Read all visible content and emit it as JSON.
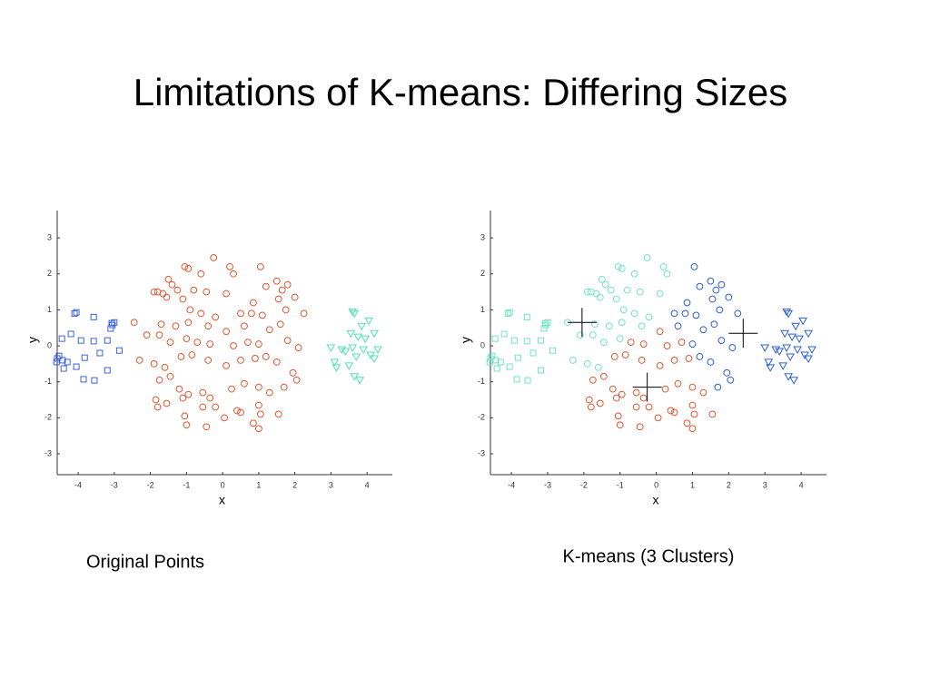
{
  "title": "Limitations of K-means: Differing Sizes",
  "chart_data": [
    {
      "type": "scatter",
      "caption": "Original Points",
      "xlabel": "x",
      "ylabel": "y",
      "xlim": [
        -4.58,
        4.7
      ],
      "ylim": [
        -3.58,
        3.76
      ],
      "xticks": [
        -4,
        -3,
        -2,
        -1,
        0,
        1,
        2,
        3,
        4
      ],
      "yticks": [
        -3,
        -2,
        -1,
        0,
        1,
        2,
        3
      ],
      "series": [
        {
          "marker": "square",
          "color": "#3b63d6",
          "x": [
            -4.05,
            -3.57,
            -3.07,
            -3.0,
            -3.1,
            -4.45,
            -4.2,
            -3.92,
            -3.57,
            -3.19,
            -2.86,
            -3.4,
            -4.53,
            -4.43,
            -4.3,
            -4.58,
            -3.82,
            -4.05,
            -4.4,
            -3.19,
            -3.85,
            -3.55,
            -4.6,
            -3.05,
            -4.1
          ],
          "values": [
            0.93,
            0.8,
            0.63,
            0.65,
            0.48,
            0.2,
            0.33,
            0.15,
            0.13,
            0.15,
            -0.13,
            -0.2,
            -0.28,
            -0.4,
            -0.45,
            -0.35,
            -0.33,
            -0.58,
            -0.63,
            -0.68,
            -0.93,
            -0.96,
            -0.45,
            0.58,
            0.9
          ]
        },
        {
          "marker": "circle",
          "color": "#e2562e",
          "x": [
            -0.25,
            0.2,
            1.05,
            -1.05,
            -0.95,
            -0.6,
            0.3,
            -1.5,
            -1.4,
            -1.8,
            -1.65,
            -1.9,
            -1.25,
            -0.8,
            -0.45,
            0.1,
            1.2,
            1.5,
            1.65,
            1.8,
            2.0,
            1.55,
            0.85,
            -1.1,
            -1.55,
            -0.9,
            -0.6,
            -0.2,
            0.5,
            0.8,
            1.1,
            1.75,
            2.25,
            -2.45,
            -1.7,
            -1.3,
            -0.95,
            -0.4,
            0.1,
            0.6,
            1.3,
            1.6,
            -2.1,
            -1.75,
            -1.45,
            -1.0,
            -0.7,
            -0.35,
            0.3,
            0.7,
            1.0,
            1.8,
            2.1,
            -2.3,
            -1.9,
            -1.6,
            -1.15,
            -0.85,
            -0.4,
            0.1,
            0.5,
            0.9,
            1.2,
            1.5,
            1.95,
            2.05,
            -1.75,
            -1.45,
            -1.2,
            -0.95,
            -0.55,
            -0.35,
            0.25,
            0.6,
            1.0,
            1.3,
            1.7,
            -1.85,
            -1.55,
            -1.1,
            -0.2,
            0.4,
            1.0,
            -1.8,
            -0.55,
            0.5,
            1.05,
            1.55,
            -1.0,
            -0.45,
            0.85,
            1.0,
            -1.05,
            0.05
          ],
          "values": [
            2.45,
            2.2,
            2.2,
            2.2,
            2.15,
            2.0,
            2.0,
            1.85,
            1.7,
            1.5,
            1.45,
            1.5,
            1.55,
            1.55,
            1.5,
            1.45,
            1.65,
            1.8,
            1.55,
            1.7,
            1.35,
            1.3,
            1.2,
            1.3,
            1.35,
            1.0,
            0.9,
            0.8,
            0.9,
            0.9,
            0.85,
            1.0,
            0.9,
            0.65,
            0.6,
            0.55,
            0.65,
            0.55,
            0.4,
            0.55,
            0.45,
            0.6,
            0.3,
            0.3,
            0.1,
            0.2,
            0.1,
            0.05,
            0.0,
            0.1,
            0.05,
            0.15,
            -0.05,
            -0.4,
            -0.5,
            -0.6,
            -0.3,
            -0.25,
            -0.4,
            -0.55,
            -0.4,
            -0.35,
            -0.3,
            -0.45,
            -0.75,
            -0.95,
            -0.95,
            -0.85,
            -1.2,
            -1.35,
            -1.3,
            -1.45,
            -1.2,
            -1.05,
            -1.15,
            -1.3,
            -1.15,
            -1.5,
            -1.6,
            -1.45,
            -1.7,
            -1.8,
            -1.65,
            -1.7,
            -1.7,
            -1.85,
            -1.9,
            -1.9,
            -2.2,
            -2.25,
            -2.15,
            -2.3,
            -1.95,
            -2.0
          ]
        },
        {
          "marker": "triangle",
          "color": "#4fe0b6",
          "x": [
            3.6,
            3.65,
            4.05,
            3.85,
            4.2,
            3.55,
            3.75,
            3.95,
            3.0,
            3.3,
            3.6,
            3.9,
            4.3,
            4.1,
            3.7,
            3.1,
            3.5,
            4.2,
            3.65,
            3.8,
            3.15,
            3.4
          ],
          "values": [
            0.95,
            0.9,
            0.7,
            0.55,
            0.35,
            0.35,
            0.25,
            0.2,
            -0.05,
            -0.1,
            -0.05,
            -0.1,
            -0.1,
            -0.25,
            -0.3,
            -0.45,
            -0.55,
            -0.35,
            -0.85,
            -0.95,
            -0.6,
            -0.15
          ]
        }
      ]
    },
    {
      "type": "scatter",
      "caption": "K-means (3 Clusters)",
      "xlabel": "x",
      "ylabel": "y",
      "xlim": [
        -4.58,
        4.7
      ],
      "ylim": [
        -3.58,
        3.76
      ],
      "xticks": [
        -4,
        -3,
        -2,
        -1,
        0,
        1,
        2,
        3,
        4
      ],
      "yticks": [
        -3,
        -2,
        -1,
        0,
        1,
        2,
        3
      ],
      "series": [
        {
          "marker": "square",
          "color": "#6fe3c6",
          "x": [
            -4.05,
            -3.57,
            -3.07,
            -3.0,
            -3.1,
            -4.45,
            -4.2,
            -3.92,
            -3.57,
            -3.19,
            -2.86,
            -3.4,
            -4.53,
            -4.43,
            -4.3,
            -4.58,
            -3.82,
            -4.05,
            -4.4,
            -3.19,
            -3.85,
            -3.55,
            -4.6,
            -3.05,
            -4.1
          ],
          "values": [
            0.93,
            0.8,
            0.63,
            0.65,
            0.48,
            0.2,
            0.33,
            0.15,
            0.13,
            0.15,
            -0.13,
            -0.2,
            -0.28,
            -0.4,
            -0.45,
            -0.35,
            -0.33,
            -0.58,
            -0.63,
            -0.68,
            -0.93,
            -0.96,
            -0.45,
            0.58,
            0.9
          ]
        },
        {
          "marker": "circle",
          "color": "#6fe3c6",
          "x": [
            -0.25,
            0.2,
            -1.05,
            -0.95,
            -0.6,
            0.3,
            -1.5,
            -1.4,
            -1.8,
            -1.65,
            -1.9,
            -1.25,
            -0.8,
            -0.45,
            0.1,
            -1.1,
            -1.55,
            -0.9,
            -0.6,
            -0.2,
            -2.45,
            -1.7,
            -1.3,
            -0.95,
            -0.4,
            -2.1,
            -1.75,
            -1.45,
            -1.0,
            -2.3,
            -1.9,
            -1.6
          ],
          "values": [
            2.45,
            2.2,
            2.2,
            2.15,
            2.0,
            2.0,
            1.85,
            1.7,
            1.5,
            1.45,
            1.5,
            1.55,
            1.55,
            1.5,
            1.45,
            1.3,
            1.35,
            1.0,
            0.9,
            0.8,
            0.65,
            0.6,
            0.55,
            0.65,
            0.55,
            0.3,
            0.3,
            0.1,
            0.2,
            -0.4,
            -0.5,
            -0.6
          ]
        },
        {
          "marker": "circle",
          "color": "#e2562e",
          "x": [
            0.1,
            -0.7,
            -0.35,
            0.3,
            0.7,
            -1.15,
            -0.85,
            -0.4,
            0.1,
            0.5,
            0.9,
            -1.75,
            -1.45,
            -1.2,
            -0.95,
            -0.55,
            -0.35,
            0.25,
            0.6,
            1.0,
            1.3,
            -1.85,
            -1.55,
            -1.1,
            -0.2,
            0.4,
            1.0,
            -1.8,
            -0.55,
            0.5,
            1.05,
            1.55,
            -1.0,
            -0.45,
            0.85,
            1.0,
            -1.05,
            0.05
          ],
          "values": [
            0.4,
            0.1,
            0.05,
            0.0,
            0.1,
            -0.3,
            -0.25,
            -0.4,
            -0.55,
            -0.4,
            -0.35,
            -0.95,
            -0.85,
            -1.2,
            -1.35,
            -1.3,
            -1.45,
            -1.2,
            -1.05,
            -1.15,
            -1.3,
            -1.5,
            -1.6,
            -1.45,
            -1.7,
            -1.8,
            -1.65,
            -1.7,
            -1.7,
            -1.85,
            -1.9,
            -1.9,
            -2.2,
            -2.25,
            -2.15,
            -2.3,
            -1.95,
            -2.0
          ]
        },
        {
          "marker": "circle",
          "color": "#2d5ed6",
          "x": [
            1.05,
            1.2,
            1.5,
            1.65,
            1.8,
            2.0,
            1.55,
            0.85,
            0.5,
            0.8,
            1.1,
            1.75,
            2.25,
            0.6,
            1.3,
            1.6,
            1.0,
            1.8,
            2.1,
            1.2,
            1.5,
            1.95,
            2.05,
            1.7
          ],
          "values": [
            2.2,
            1.65,
            1.8,
            1.55,
            1.7,
            1.35,
            1.3,
            1.2,
            0.9,
            0.9,
            0.85,
            1.0,
            0.9,
            0.55,
            0.45,
            0.6,
            0.05,
            0.15,
            -0.05,
            -0.3,
            -0.45,
            -0.75,
            -0.95,
            -1.15
          ]
        },
        {
          "marker": "triangle",
          "color": "#2d5ed6",
          "x": [
            3.6,
            3.65,
            4.05,
            3.85,
            4.2,
            3.55,
            3.75,
            3.95,
            3.0,
            3.3,
            3.6,
            3.9,
            4.3,
            4.1,
            3.7,
            3.1,
            3.5,
            4.2,
            3.65,
            3.8,
            3.15,
            3.4
          ],
          "values": [
            0.95,
            0.9,
            0.7,
            0.55,
            0.35,
            0.35,
            0.25,
            0.2,
            -0.05,
            -0.1,
            -0.05,
            -0.1,
            -0.1,
            -0.25,
            -0.3,
            -0.45,
            -0.55,
            -0.35,
            -0.85,
            -0.95,
            -0.6,
            -0.15
          ]
        },
        {
          "marker": "plus",
          "color": "#000000",
          "x": [
            -2.05,
            -0.25,
            2.4
          ],
          "values": [
            0.65,
            -1.15,
            0.35
          ]
        }
      ]
    }
  ]
}
